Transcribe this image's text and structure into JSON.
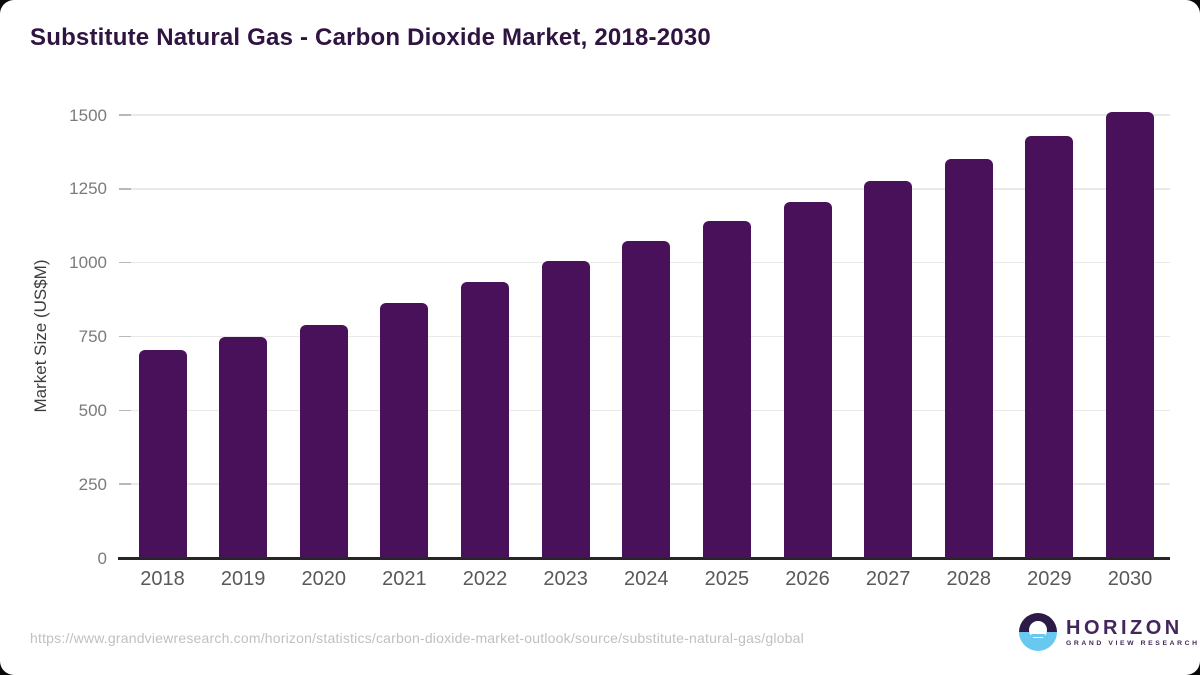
{
  "title": "Substitute Natural Gas - Carbon Dioxide Market, 2018-2030",
  "chart_data": {
    "type": "bar",
    "title": "Substitute Natural Gas - Carbon Dioxide Market, 2018-2030",
    "categories": [
      "2018",
      "2019",
      "2020",
      "2021",
      "2022",
      "2023",
      "2024",
      "2025",
      "2026",
      "2027",
      "2028",
      "2029",
      "2030"
    ],
    "values": [
      705,
      750,
      790,
      865,
      935,
      1005,
      1075,
      1140,
      1205,
      1275,
      1350,
      1430,
      1510
    ],
    "xlabel": "",
    "ylabel": "Market Size (US$M)",
    "ylim": [
      0,
      1500
    ],
    "yticks": [
      0,
      250,
      500,
      750,
      1000,
      1250,
      1500
    ],
    "grid": "horizontal-only",
    "legend": "none",
    "bar_color": "#491159",
    "gridline_color": "#e9e9e9",
    "axis_line_color": "#262626",
    "y_tick_label_color": "#7b7b7b",
    "x_tick_label_color": "#595959"
  },
  "footer": {
    "source_url": "https://www.grandviewresearch.com/horizon/statistics/carbon-dioxide-market-outlook/source/substitute-natural-gas/global",
    "logo": {
      "brand": "HORIZON",
      "sub_brand": "GRAND VIEW RESEARCH",
      "mark_top_color": "#2d1a47",
      "mark_bottom_color": "#69c8f0"
    }
  }
}
